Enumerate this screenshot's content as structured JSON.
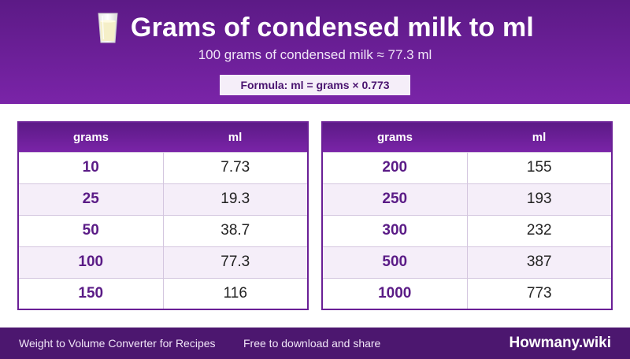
{
  "header": {
    "icon": "milk-glass-icon",
    "title": "Grams of condensed milk to ml",
    "subtitle": "100 grams of condensed milk ≈ 77.3 ml",
    "formula": "Formula: ml = grams × 0.773"
  },
  "tables": [
    {
      "headers": {
        "grams": "grams",
        "ml": "ml"
      },
      "rows": [
        {
          "grams": "10",
          "ml": "7.73"
        },
        {
          "grams": "25",
          "ml": "19.3"
        },
        {
          "grams": "50",
          "ml": "38.7"
        },
        {
          "grams": "100",
          "ml": "77.3"
        },
        {
          "grams": "150",
          "ml": "116"
        }
      ]
    },
    {
      "headers": {
        "grams": "grams",
        "ml": "ml"
      },
      "rows": [
        {
          "grams": "200",
          "ml": "155"
        },
        {
          "grams": "250",
          "ml": "193"
        },
        {
          "grams": "300",
          "ml": "232"
        },
        {
          "grams": "500",
          "ml": "387"
        },
        {
          "grams": "1000",
          "ml": "773"
        }
      ]
    }
  ],
  "footer": {
    "tagline": "Weight to Volume Converter for Recipes",
    "free": "Free to download and share",
    "brand": "Howmany.wiki"
  },
  "colors": {
    "accent": "#6a1f96",
    "header_dark": "#5c1a86",
    "footer": "#4c176f",
    "row_alt": "#f5eef9"
  }
}
